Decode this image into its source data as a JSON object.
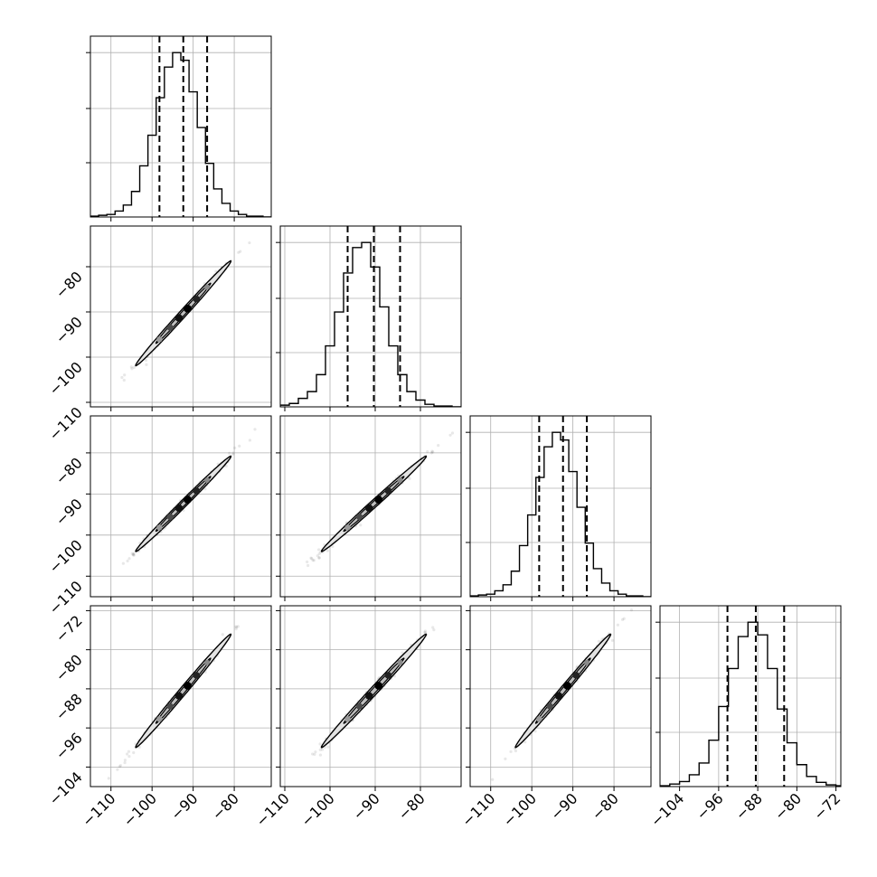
{
  "chart_data": {
    "type": "corner",
    "grid": true,
    "n_params": 4,
    "ranges": [
      [
        -115,
        -71
      ],
      [
        -111,
        -71
      ],
      [
        -115,
        -71
      ],
      [
        -108,
        -71
      ]
    ],
    "means": [
      -92.4,
      -90.3,
      -92.4,
      -88.4
    ],
    "sigmas": [
      5.8,
      5.8,
      5.8,
      5.8
    ],
    "correlation": 0.995,
    "quantiles": [
      [
        -98.2,
        -92.4,
        -86.6
      ],
      [
        -96.1,
        -90.3,
        -84.5
      ],
      [
        -98.2,
        -92.4,
        -86.6
      ],
      [
        -94.2,
        -88.4,
        -82.6
      ]
    ],
    "x_ticks": [
      [
        -110,
        -100,
        -90,
        -80
      ],
      [
        -110,
        -100,
        -90,
        -80
      ],
      [
        -110,
        -100,
        -90,
        -80
      ],
      [
        -104,
        -96,
        -88,
        -80,
        -72
      ]
    ],
    "x_tick_labels": [
      [
        "−110",
        "−100",
        "−90",
        "−80"
      ],
      [
        "−110",
        "−100",
        "−90",
        "−80"
      ],
      [
        "−110",
        "−100",
        "−90",
        "−80"
      ],
      [
        "−104",
        "−96",
        "−88",
        "−80",
        "−72"
      ]
    ],
    "y_ticks": [
      [
        -110,
        -100,
        -90,
        -80
      ],
      [
        -110,
        -100,
        -90,
        -80
      ],
      [
        -110,
        -100,
        -90,
        -80
      ],
      [
        -104,
        -96,
        -88,
        -80,
        -72
      ]
    ],
    "y_tick_labels": [
      [
        "−110",
        "−100",
        "−90",
        "−80"
      ],
      [
        "−110",
        "−100",
        "−90",
        "−80"
      ],
      [
        "−110",
        "−100",
        "−90",
        "−80"
      ],
      [
        "−104",
        "−96",
        "−88",
        "−80",
        "−72"
      ]
    ],
    "histograms": [
      {
        "bin_edges": [
          -115,
          -113,
          -111,
          -109,
          -107,
          -105,
          -103,
          -101,
          -99,
          -97,
          -95,
          -93,
          -91,
          -89,
          -87,
          -85,
          -83,
          -81,
          -79,
          -77,
          -75,
          -73,
          -71
        ],
        "counts": [
          1,
          2,
          3,
          7,
          14,
          30,
          60,
          96,
          140,
          176,
          193,
          184,
          147,
          105,
          63,
          33,
          16,
          7,
          3,
          1,
          1,
          0
        ]
      },
      {
        "bin_edges": [
          -111,
          -109,
          -107,
          -105,
          -103,
          -101,
          -99,
          -97,
          -95,
          -93,
          -91,
          -89,
          -87,
          -85,
          -83,
          -81,
          -79,
          -77,
          -75,
          -73,
          -71
        ],
        "counts": [
          2,
          4,
          10,
          18,
          38,
          72,
          112,
          158,
          188,
          194,
          165,
          118,
          72,
          38,
          18,
          8,
          3,
          1,
          1,
          0
        ]
      },
      {
        "bin_edges": [
          -115,
          -113,
          -111,
          -109,
          -107,
          -105,
          -103,
          -101,
          -99,
          -97,
          -95,
          -93,
          -91,
          -89,
          -87,
          -85,
          -83,
          -81,
          -79,
          -77,
          -75,
          -73,
          -71
        ],
        "counts": [
          1,
          2,
          3,
          7,
          14,
          30,
          60,
          96,
          140,
          176,
          193,
          184,
          147,
          105,
          63,
          33,
          16,
          7,
          3,
          1,
          1,
          0
        ]
      },
      {
        "bin_edges": [
          -108,
          -106,
          -104,
          -102,
          -100,
          -98,
          -96,
          -94,
          -92,
          -90,
          -88,
          -86,
          -84,
          -82,
          -80,
          -78,
          -76,
          -74,
          -72,
          -70
        ],
        "counts": [
          1,
          3,
          6,
          14,
          28,
          55,
          95,
          140,
          178,
          195,
          180,
          140,
          92,
          52,
          26,
          12,
          5,
          2,
          1
        ]
      }
    ]
  }
}
